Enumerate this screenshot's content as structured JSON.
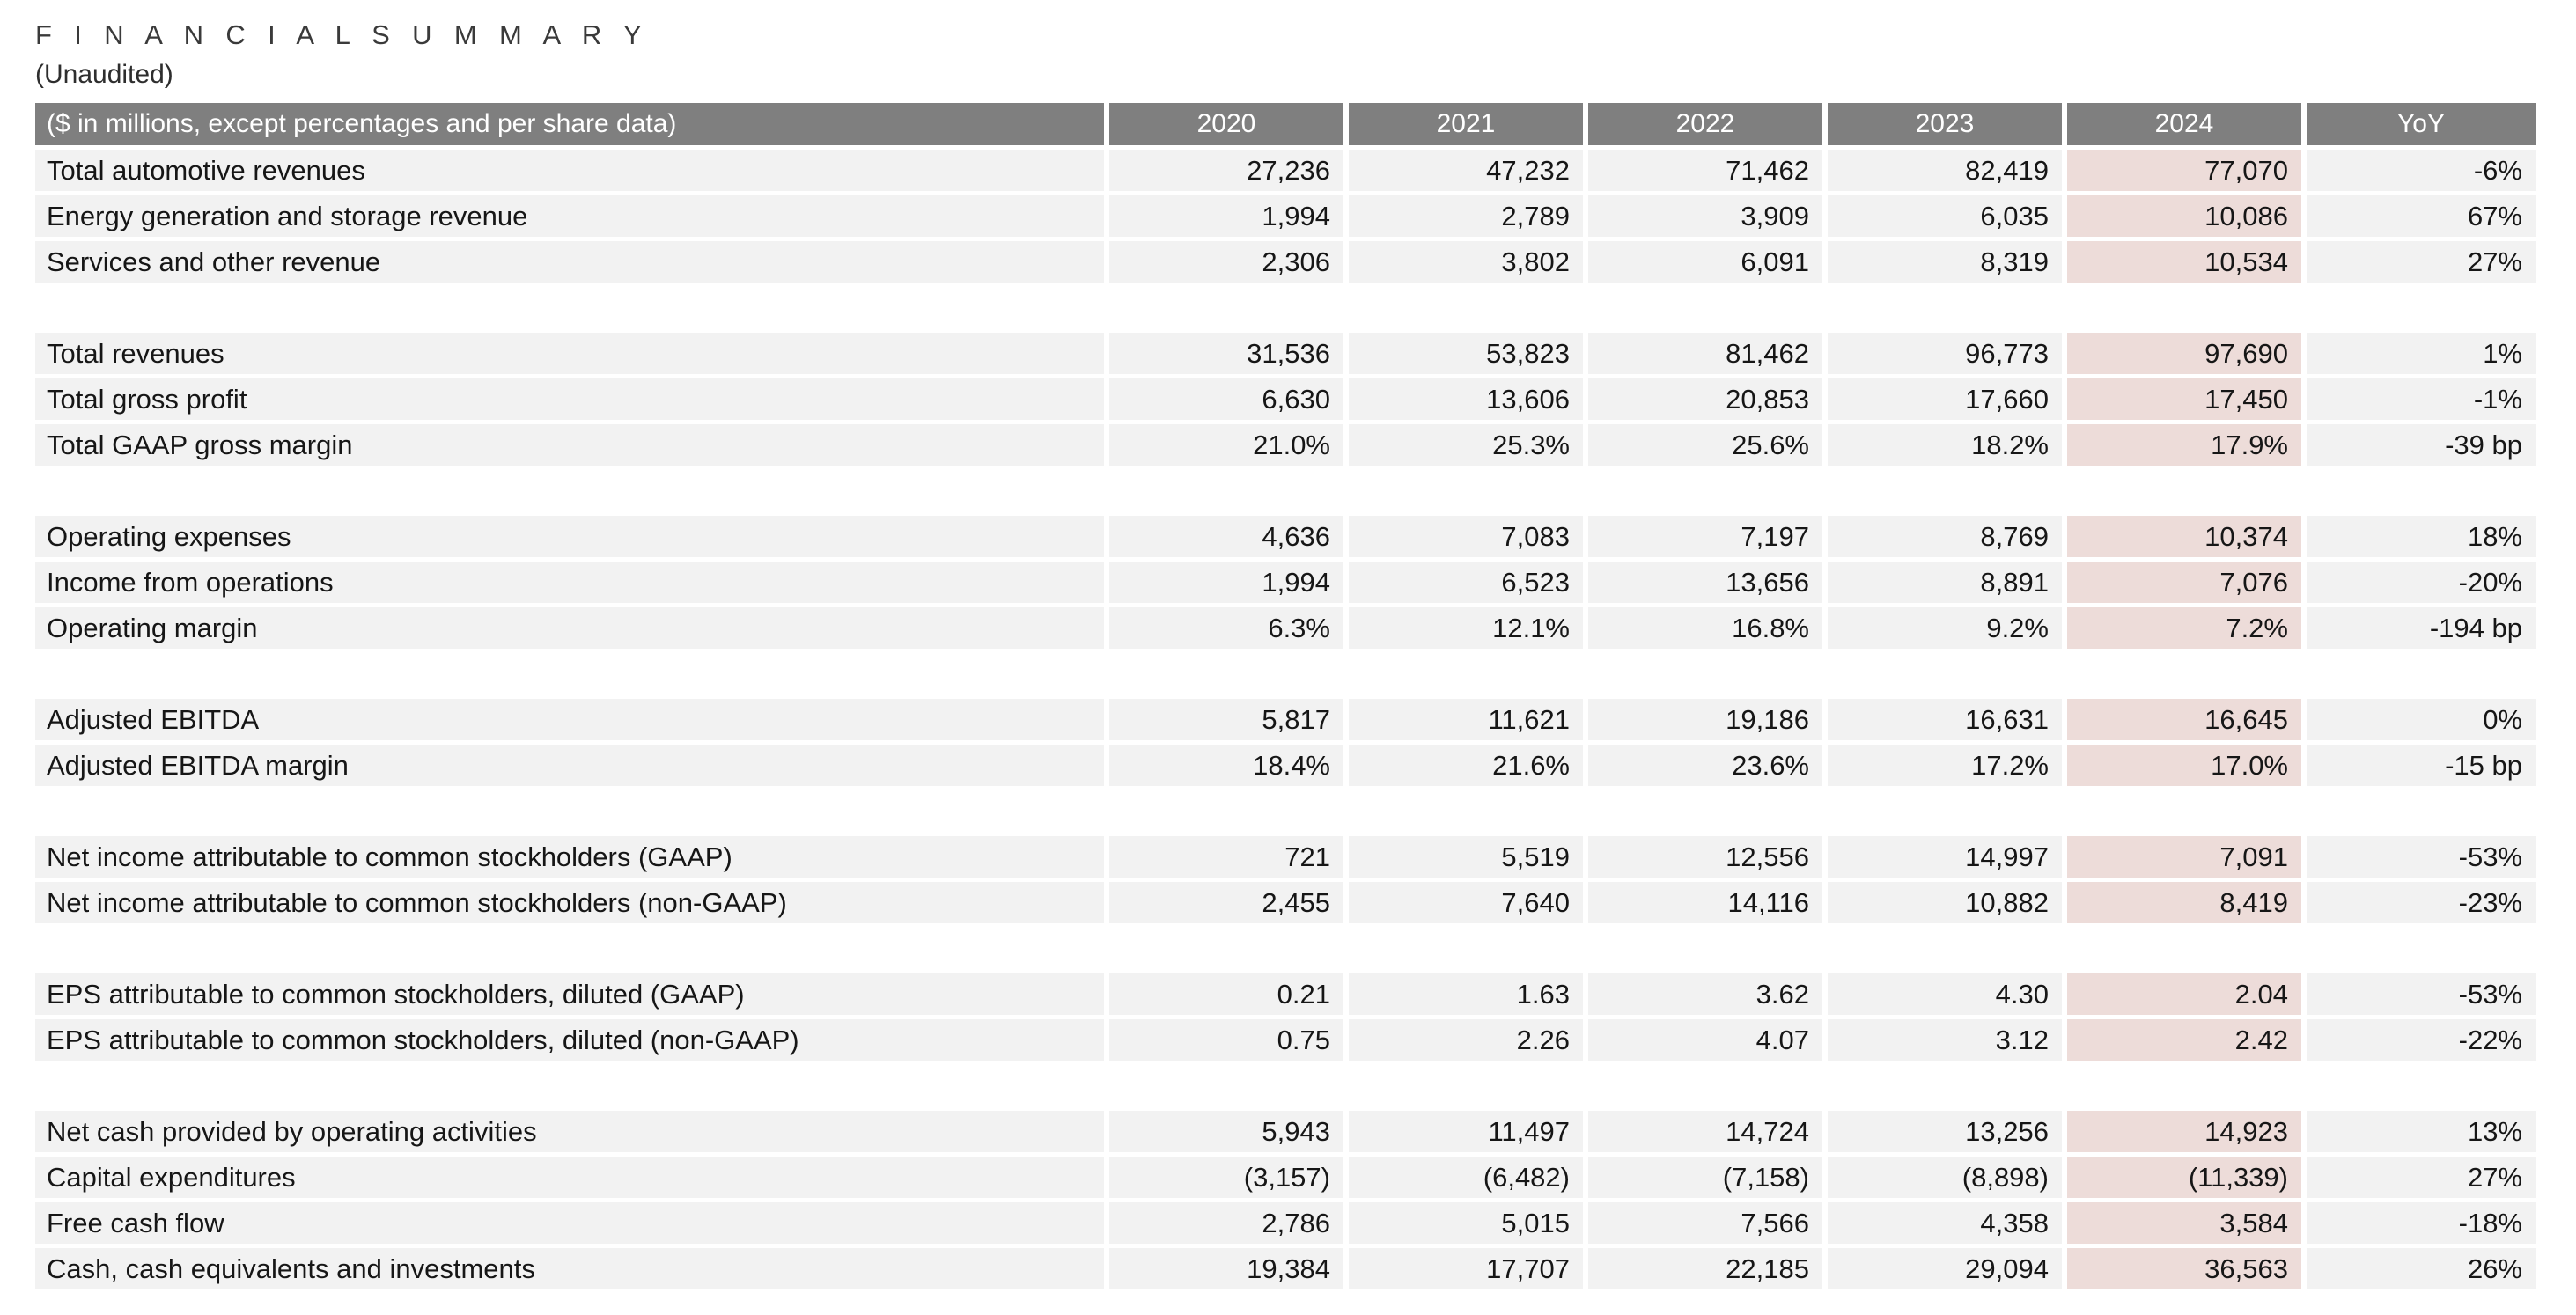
{
  "page": {
    "title": "F I N A N C I A L   S U M M A R Y",
    "title_plain": "FINANCIAL SUMMARY",
    "subtitle": "(Unaudited)"
  },
  "colors": {
    "header_bg": "#7f7f7f",
    "header_text": "#ffffff",
    "row_bg": "#f2f2f2",
    "highlight_2024_bg": "#eddcd9",
    "title_text": "#3a3a3a",
    "body_text": "#161616"
  },
  "table": {
    "header": [
      "($ in millions, except percentages and per share data)",
      "2020",
      "2021",
      "2022",
      "2023",
      "2024",
      "YoY"
    ],
    "highlight_column": "2024",
    "highlight_column_index": 4,
    "rows": [
      {
        "label": "Total automotive revenues",
        "values": [
          "27,236",
          "47,232",
          "71,462",
          "82,419",
          "77,070",
          "-6%"
        ]
      },
      {
        "label": "Energy generation and storage revenue",
        "values": [
          "1,994",
          "2,789",
          "3,909",
          "6,035",
          "10,086",
          "67%"
        ]
      },
      {
        "label": "Services and other revenue",
        "values": [
          "2,306",
          "3,802",
          "6,091",
          "8,319",
          "10,534",
          "27%"
        ]
      },
      {
        "spacer": true
      },
      {
        "label": "Total revenues",
        "values": [
          "31,536",
          "53,823",
          "81,462",
          "96,773",
          "97,690",
          "1%"
        ]
      },
      {
        "label": "Total gross profit",
        "values": [
          "6,630",
          "13,606",
          "20,853",
          "17,660",
          "17,450",
          "-1%"
        ]
      },
      {
        "label": "Total GAAP gross margin",
        "values": [
          "21.0%",
          "25.3%",
          "25.6%",
          "18.2%",
          "17.9%",
          "-39 bp"
        ]
      },
      {
        "spacer": true
      },
      {
        "label": "Operating expenses",
        "values": [
          "4,636",
          "7,083",
          "7,197",
          "8,769",
          "10,374",
          "18%"
        ]
      },
      {
        "label": "Income from operations",
        "values": [
          "1,994",
          "6,523",
          "13,656",
          "8,891",
          "7,076",
          "-20%"
        ]
      },
      {
        "label": "Operating margin",
        "values": [
          "6.3%",
          "12.1%",
          "16.8%",
          "9.2%",
          "7.2%",
          "-194 bp"
        ]
      },
      {
        "spacer": true
      },
      {
        "label": "Adjusted EBITDA",
        "values": [
          "5,817",
          "11,621",
          "19,186",
          "16,631",
          "16,645",
          "0%"
        ]
      },
      {
        "label": "Adjusted EBITDA margin",
        "values": [
          "18.4%",
          "21.6%",
          "23.6%",
          "17.2%",
          "17.0%",
          "-15 bp"
        ]
      },
      {
        "spacer": true
      },
      {
        "label": "Net income attributable to common stockholders (GAAP)",
        "values": [
          "721",
          "5,519",
          "12,556",
          "14,997",
          "7,091",
          "-53%"
        ]
      },
      {
        "label": "Net income attributable to common stockholders (non-GAAP)",
        "values": [
          "2,455",
          "7,640",
          "14,116",
          "10,882",
          "8,419",
          "-23%"
        ]
      },
      {
        "spacer": true
      },
      {
        "label": "EPS attributable to common stockholders, diluted (GAAP)",
        "values": [
          "0.21",
          "1.63",
          "3.62",
          "4.30",
          "2.04",
          "-53%"
        ]
      },
      {
        "label": "EPS attributable to common stockholders, diluted (non-GAAP)",
        "values": [
          "0.75",
          "2.26",
          "4.07",
          "3.12",
          "2.42",
          "-22%"
        ]
      },
      {
        "spacer": true
      },
      {
        "label": "Net cash provided by operating activities",
        "values": [
          "5,943",
          "11,497",
          "14,724",
          "13,256",
          "14,923",
          "13%"
        ]
      },
      {
        "label": "Capital expenditures",
        "values": [
          "(3,157)",
          "(6,482)",
          "(7,158)",
          "(8,898)",
          "(11,339)",
          "27%"
        ]
      },
      {
        "label": "Free cash flow",
        "values": [
          "2,786",
          "5,015",
          "7,566",
          "4,358",
          "3,584",
          "-18%"
        ]
      },
      {
        "label": "Cash, cash equivalents and investments",
        "values": [
          "19,384",
          "17,707",
          "22,185",
          "29,094",
          "36,563",
          "26%"
        ]
      }
    ]
  }
}
